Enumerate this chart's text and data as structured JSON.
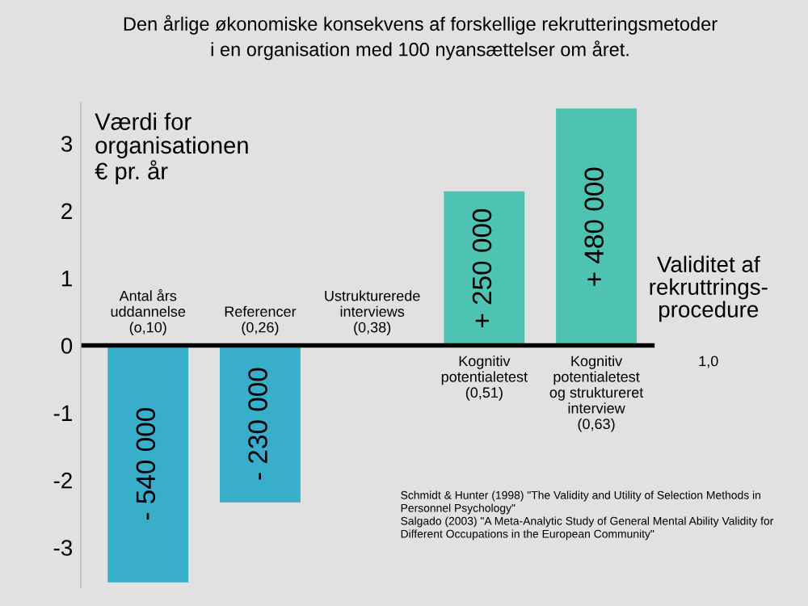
{
  "chart_data": {
    "type": "bar",
    "title": "Den årlige økonomiske konsekvens af forskellige rekrutteringsmetoder\ni en organisation med 100 nyansættelser om året.",
    "ylabel": "Værdi for\norganisationen\n€ pr. år",
    "xlabel": "Validitet af\nrekruttrings-\nprocedure",
    "categories": [
      "Antal års\nuddannelse\n(o,10)",
      "Referencer\n(0,26)",
      "Ustrukturerede\ninterviews\n(0,38)",
      "Kognitiv\npotentialetest\n(0,51)",
      "Kognitiv\npotentialetest\nog struktureret\ninterview\n(0,63)",
      "1,0"
    ],
    "values": [
      -3.52,
      -2.33,
      null,
      2.29,
      3.52,
      null
    ],
    "colors": [
      "#38aecb",
      "#38aecb",
      "#38aecb",
      "#4ec3b1",
      "#4ec3b1",
      "#4ec3b1"
    ],
    "ylim": [
      -3.6,
      3.6
    ],
    "yticks": [
      -3,
      -2,
      -1,
      0,
      1,
      2,
      3
    ],
    "grid": false,
    "annotations": [
      "- 540 000",
      "- 230 000",
      "+ 250 000",
      "+ 480 000",
      "Schmidt & Hunter (1998) \"The Validity and Utility of Selection Methods in\nPersonnel Psychology\"\nSalgado (2003) \"A Meta-Analytic Study of General Mental Ability Validity for\nDifferent Occupations in the European Community\""
    ]
  }
}
